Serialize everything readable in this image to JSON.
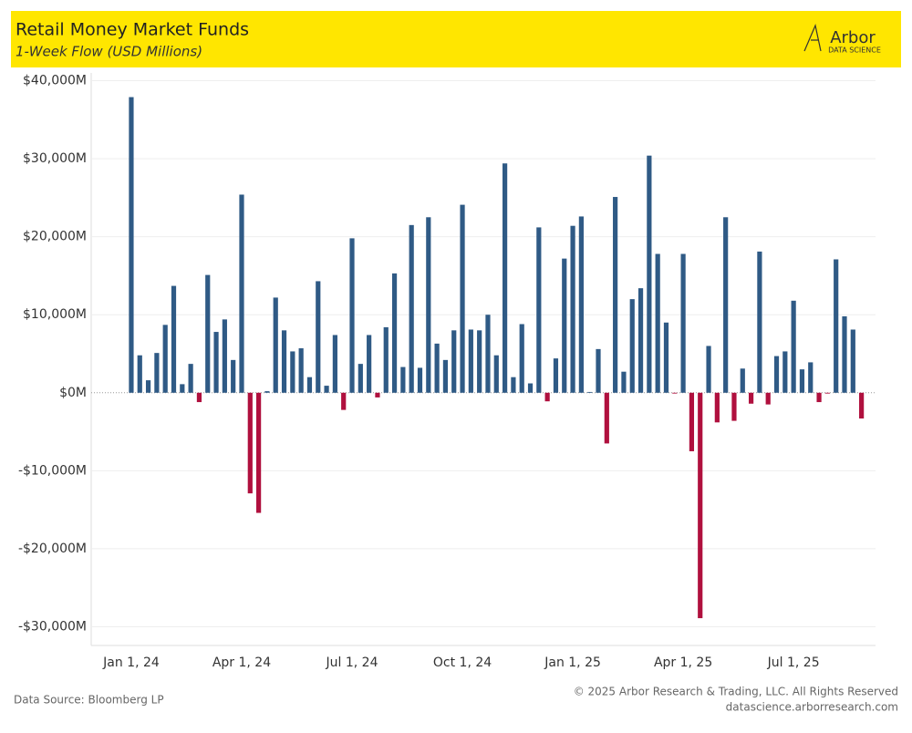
{
  "header": {
    "logo": "Arbor",
    "logo_sub": "DATA SCIENCE"
  },
  "footer": {
    "source": "Data Source: Bloomberg LP",
    "copyright": "© 2025 Arbor Research & Trading, LLC. All Rights Reserved",
    "url": "datascience.arborresearch.com"
  },
  "chart_data": {
    "type": "bar",
    "title": "Retail Money Market Funds",
    "subtitle": "1-Week Flow (USD Millions)",
    "categories": [
      "Jan 1, 24",
      null,
      null,
      null,
      null,
      null,
      null,
      null,
      null,
      null,
      null,
      null,
      null,
      "Apr 1, 24",
      null,
      null,
      null,
      null,
      null,
      null,
      null,
      null,
      null,
      null,
      null,
      null,
      "Jul 1, 24",
      null,
      null,
      null,
      null,
      null,
      null,
      null,
      null,
      null,
      null,
      null,
      null,
      "Oct 1, 24",
      null,
      null,
      null,
      null,
      null,
      null,
      null,
      null,
      null,
      null,
      null,
      null,
      "Jan 1, 25",
      null,
      null,
      null,
      null,
      null,
      null,
      null,
      null,
      null,
      null,
      null,
      null,
      "Apr 1, 25",
      null,
      null,
      null,
      null,
      null,
      null,
      null,
      null,
      null,
      null,
      null,
      null,
      "Jul 1, 25",
      null,
      null,
      null,
      null,
      null,
      null,
      null,
      null
    ],
    "values": [
      37900,
      4800,
      1600,
      5100,
      8700,
      13700,
      1100,
      3700,
      -1200,
      15100,
      7800,
      9400,
      4200,
      25400,
      -12900,
      -15400,
      200,
      12200,
      8000,
      5300,
      5700,
      2000,
      14300,
      900,
      7400,
      -2200,
      19800,
      3700,
      7400,
      -600,
      8400,
      15300,
      3300,
      21500,
      3200,
      22500,
      6300,
      4200,
      8000,
      24100,
      8100,
      8000,
      10000,
      4800,
      29400,
      2000,
      8800,
      1200,
      21200,
      -1100,
      4400,
      17200,
      21400,
      22600,
      100,
      5600,
      -6500,
      25100,
      2700,
      12000,
      13400,
      30400,
      17800,
      9000,
      -100,
      17800,
      -7500,
      -28900,
      6000,
      -3800,
      22500,
      -3600,
      3100,
      -1400,
      18100,
      -1500,
      4700,
      5300,
      11800,
      3000,
      3900,
      -1200,
      -100,
      17100,
      9800,
      8100,
      -3300
    ],
    "positive_color": "#2f5a85",
    "negative_color": "#b0103e",
    "ylim": [
      -32400,
      41000
    ],
    "yticks": [
      {
        "value": -30000,
        "label": "-$30,000M"
      },
      {
        "value": -20000,
        "label": "-$20,000M"
      },
      {
        "value": -10000,
        "label": "-$10,000M"
      },
      {
        "value": 0,
        "label": "$0M"
      },
      {
        "value": 10000,
        "label": "$10,000M"
      },
      {
        "value": 20000,
        "label": "$20,000M"
      },
      {
        "value": 30000,
        "label": "$30,000M"
      },
      {
        "value": 40000,
        "label": "$40,000M"
      }
    ],
    "grid": true
  }
}
